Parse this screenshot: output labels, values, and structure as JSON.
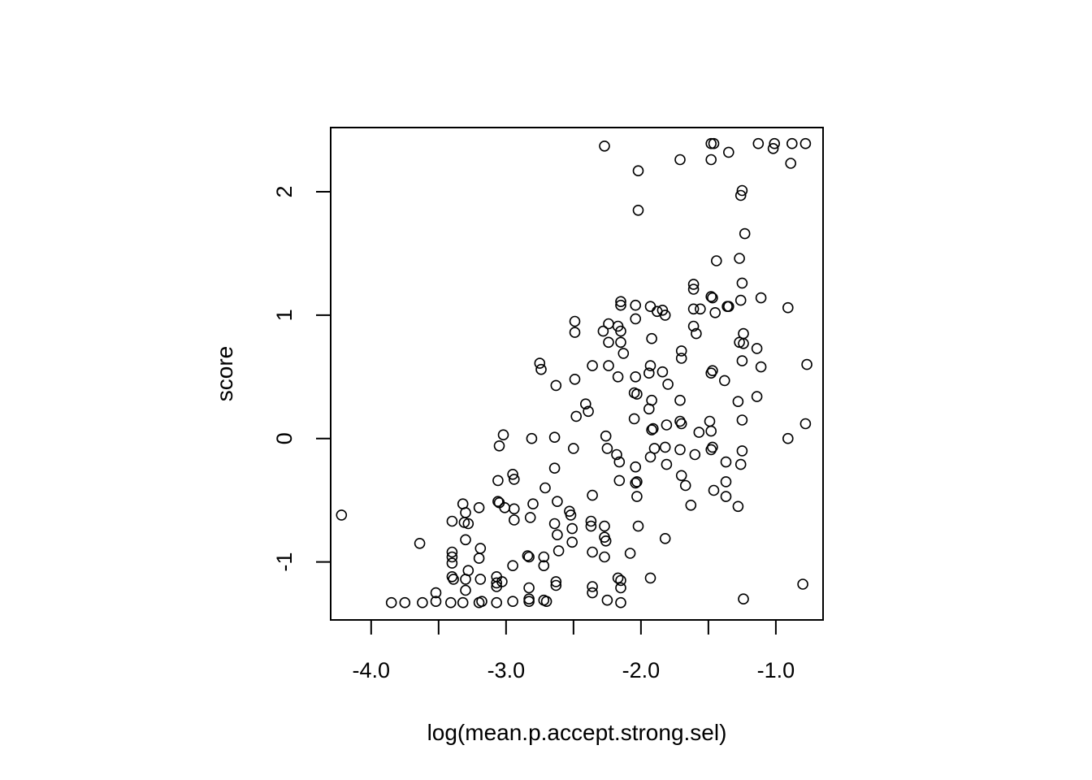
{
  "chart_data": {
    "type": "scatter",
    "title": "",
    "xlabel": "log(mean.p.accept.strong.sel)",
    "ylabel": "score",
    "xlim": [
      -4.3,
      -0.65
    ],
    "ylim": [
      -1.47,
      2.52
    ],
    "xticks": [
      -4.0,
      -3.5,
      -3.0,
      -2.5,
      -2.0,
      -1.5,
      -1.0
    ],
    "xtick_labels": [
      "-4.0",
      "",
      "-3.0",
      "",
      "-2.0",
      "",
      "-1.0"
    ],
    "yticks": [
      -1,
      0,
      1,
      2
    ],
    "ytick_labels": [
      "-1",
      "0",
      "1",
      "2"
    ],
    "marker": "open-circle",
    "grid": false,
    "legend": "none",
    "points": [
      [
        -2.27,
        2.37
      ],
      [
        -1.48,
        2.39
      ],
      [
        -1.46,
        2.39
      ],
      [
        -1.35,
        2.32
      ],
      [
        -1.13,
        2.39
      ],
      [
        -1.01,
        2.39
      ],
      [
        -0.88,
        2.39
      ],
      [
        -0.78,
        2.39
      ],
      [
        -1.02,
        2.35
      ],
      [
        -1.48,
        2.26
      ],
      [
        -1.71,
        2.26
      ],
      [
        -0.89,
        2.23
      ],
      [
        -2.02,
        2.17
      ],
      [
        -1.25,
        2.01
      ],
      [
        -1.26,
        1.97
      ],
      [
        -2.02,
        1.85
      ],
      [
        -1.23,
        1.66
      ],
      [
        -1.44,
        1.44
      ],
      [
        -1.27,
        1.46
      ],
      [
        -1.61,
        1.25
      ],
      [
        -1.25,
        1.26
      ],
      [
        -1.61,
        1.21
      ],
      [
        -1.48,
        1.15
      ],
      [
        -1.47,
        1.14
      ],
      [
        -2.15,
        1.11
      ],
      [
        -1.11,
        1.14
      ],
      [
        -2.15,
        1.08
      ],
      [
        -2.04,
        1.08
      ],
      [
        -1.93,
        1.07
      ],
      [
        -1.36,
        1.07
      ],
      [
        -1.35,
        1.07
      ],
      [
        -1.26,
        1.12
      ],
      [
        -0.91,
        1.06
      ],
      [
        -1.88,
        1.03
      ],
      [
        -1.84,
        1.04
      ],
      [
        -1.61,
        1.05
      ],
      [
        -1.56,
        1.05
      ],
      [
        -1.82,
        1.0
      ],
      [
        -1.45,
        1.02
      ],
      [
        -2.49,
        0.95
      ],
      [
        -2.04,
        0.97
      ],
      [
        -2.24,
        0.93
      ],
      [
        -2.17,
        0.91
      ],
      [
        -1.61,
        0.91
      ],
      [
        -2.49,
        0.86
      ],
      [
        -2.28,
        0.87
      ],
      [
        -2.15,
        0.87
      ],
      [
        -1.59,
        0.85
      ],
      [
        -1.24,
        0.85
      ],
      [
        -1.92,
        0.81
      ],
      [
        -2.24,
        0.78
      ],
      [
        -2.15,
        0.78
      ],
      [
        -1.27,
        0.78
      ],
      [
        -1.24,
        0.77
      ],
      [
        -1.14,
        0.73
      ],
      [
        -1.7,
        0.71
      ],
      [
        -2.13,
        0.69
      ],
      [
        -1.7,
        0.65
      ],
      [
        -1.25,
        0.63
      ],
      [
        -2.75,
        0.61
      ],
      [
        -2.74,
        0.56
      ],
      [
        -2.36,
        0.59
      ],
      [
        -2.24,
        0.59
      ],
      [
        -1.11,
        0.58
      ],
      [
        -0.77,
        0.6
      ],
      [
        -1.93,
        0.59
      ],
      [
        -1.94,
        0.53
      ],
      [
        -1.84,
        0.54
      ],
      [
        -1.47,
        0.55
      ],
      [
        -1.48,
        0.53
      ],
      [
        -2.49,
        0.48
      ],
      [
        -2.17,
        0.5
      ],
      [
        -2.04,
        0.5
      ],
      [
        -1.38,
        0.47
      ],
      [
        -1.8,
        0.44
      ],
      [
        -2.63,
        0.43
      ],
      [
        -2.05,
        0.37
      ],
      [
        -2.03,
        0.36
      ],
      [
        -1.14,
        0.34
      ],
      [
        -1.71,
        0.31
      ],
      [
        -1.92,
        0.31
      ],
      [
        -1.28,
        0.3
      ],
      [
        -2.41,
        0.28
      ],
      [
        -2.39,
        0.22
      ],
      [
        -1.94,
        0.24
      ],
      [
        -2.48,
        0.18
      ],
      [
        -2.05,
        0.16
      ],
      [
        -1.71,
        0.14
      ],
      [
        -1.7,
        0.12
      ],
      [
        -1.81,
        0.11
      ],
      [
        -1.49,
        0.14
      ],
      [
        -1.25,
        0.15
      ],
      [
        -0.78,
        0.12
      ],
      [
        -1.92,
        0.07
      ],
      [
        -1.91,
        0.08
      ],
      [
        -1.57,
        0.05
      ],
      [
        -1.48,
        0.06
      ],
      [
        -3.02,
        0.03
      ],
      [
        -2.26,
        0.02
      ],
      [
        -2.64,
        0.01
      ],
      [
        -2.81,
        0.0
      ],
      [
        -0.91,
        0.0
      ],
      [
        -3.05,
        -0.06
      ],
      [
        -2.5,
        -0.08
      ],
      [
        -2.25,
        -0.08
      ],
      [
        -1.9,
        -0.08
      ],
      [
        -1.82,
        -0.07
      ],
      [
        -1.71,
        -0.09
      ],
      [
        -1.48,
        -0.09
      ],
      [
        -1.47,
        -0.07
      ],
      [
        -1.25,
        -0.1
      ],
      [
        -2.18,
        -0.13
      ],
      [
        -1.93,
        -0.15
      ],
      [
        -1.6,
        -0.13
      ],
      [
        -2.16,
        -0.19
      ],
      [
        -1.37,
        -0.19
      ],
      [
        -1.26,
        -0.21
      ],
      [
        -1.81,
        -0.21
      ],
      [
        -2.64,
        -0.24
      ],
      [
        -2.04,
        -0.23
      ],
      [
        -2.95,
        -0.29
      ],
      [
        -2.94,
        -0.33
      ],
      [
        -3.06,
        -0.34
      ],
      [
        -2.16,
        -0.34
      ],
      [
        -2.03,
        -0.35
      ],
      [
        -2.04,
        -0.36
      ],
      [
        -1.7,
        -0.3
      ],
      [
        -1.67,
        -0.38
      ],
      [
        -1.37,
        -0.35
      ],
      [
        -2.71,
        -0.4
      ],
      [
        -1.46,
        -0.42
      ],
      [
        -2.36,
        -0.46
      ],
      [
        -2.03,
        -0.47
      ],
      [
        -1.37,
        -0.47
      ],
      [
        -2.62,
        -0.51
      ],
      [
        -3.06,
        -0.51
      ],
      [
        -3.32,
        -0.53
      ],
      [
        -3.05,
        -0.52
      ],
      [
        -2.8,
        -0.53
      ],
      [
        -3.2,
        -0.56
      ],
      [
        -3.01,
        -0.56
      ],
      [
        -2.94,
        -0.57
      ],
      [
        -1.63,
        -0.54
      ],
      [
        -1.28,
        -0.55
      ],
      [
        -2.53,
        -0.59
      ],
      [
        -2.52,
        -0.62
      ],
      [
        -4.22,
        -0.62
      ],
      [
        -3.3,
        -0.6
      ],
      [
        -3.4,
        -0.67
      ],
      [
        -3.31,
        -0.68
      ],
      [
        -3.28,
        -0.69
      ],
      [
        -2.94,
        -0.66
      ],
      [
        -2.82,
        -0.64
      ],
      [
        -2.64,
        -0.69
      ],
      [
        -2.37,
        -0.67
      ],
      [
        -2.37,
        -0.71
      ],
      [
        -2.51,
        -0.73
      ],
      [
        -2.27,
        -0.71
      ],
      [
        -2.02,
        -0.71
      ],
      [
        -2.62,
        -0.78
      ],
      [
        -3.3,
        -0.82
      ],
      [
        -2.27,
        -0.8
      ],
      [
        -2.26,
        -0.83
      ],
      [
        -2.51,
        -0.84
      ],
      [
        -1.82,
        -0.81
      ],
      [
        -3.64,
        -0.85
      ],
      [
        -3.19,
        -0.89
      ],
      [
        -3.4,
        -0.92
      ],
      [
        -3.4,
        -0.96
      ],
      [
        -3.2,
        -0.97
      ],
      [
        -2.84,
        -0.95
      ],
      [
        -2.83,
        -0.96
      ],
      [
        -2.72,
        -0.96
      ],
      [
        -2.61,
        -0.91
      ],
      [
        -2.36,
        -0.92
      ],
      [
        -2.27,
        -0.96
      ],
      [
        -2.08,
        -0.93
      ],
      [
        -3.4,
        -1.01
      ],
      [
        -2.95,
        -1.03
      ],
      [
        -2.72,
        -1.03
      ],
      [
        -3.28,
        -1.07
      ],
      [
        -3.4,
        -1.12
      ],
      [
        -3.39,
        -1.14
      ],
      [
        -3.3,
        -1.14
      ],
      [
        -3.19,
        -1.14
      ],
      [
        -3.07,
        -1.12
      ],
      [
        -3.07,
        -1.17
      ],
      [
        -3.03,
        -1.16
      ],
      [
        -2.63,
        -1.16
      ],
      [
        -2.63,
        -1.19
      ],
      [
        -2.17,
        -1.13
      ],
      [
        -2.15,
        -1.15
      ],
      [
        -1.93,
        -1.13
      ],
      [
        -3.07,
        -1.2
      ],
      [
        -3.3,
        -1.23
      ],
      [
        -3.52,
        -1.25
      ],
      [
        -2.83,
        -1.21
      ],
      [
        -2.36,
        -1.2
      ],
      [
        -2.15,
        -1.21
      ],
      [
        -0.8,
        -1.18
      ],
      [
        -2.36,
        -1.25
      ],
      [
        -3.85,
        -1.33
      ],
      [
        -3.75,
        -1.33
      ],
      [
        -3.62,
        -1.33
      ],
      [
        -3.52,
        -1.32
      ],
      [
        -3.41,
        -1.33
      ],
      [
        -3.32,
        -1.33
      ],
      [
        -3.2,
        -1.33
      ],
      [
        -3.18,
        -1.32
      ],
      [
        -3.07,
        -1.33
      ],
      [
        -2.95,
        -1.32
      ],
      [
        -2.83,
        -1.32
      ],
      [
        -2.83,
        -1.3
      ],
      [
        -2.7,
        -1.32
      ],
      [
        -2.72,
        -1.31
      ],
      [
        -2.25,
        -1.31
      ],
      [
        -2.15,
        -1.33
      ],
      [
        -1.24,
        -1.3
      ]
    ]
  }
}
